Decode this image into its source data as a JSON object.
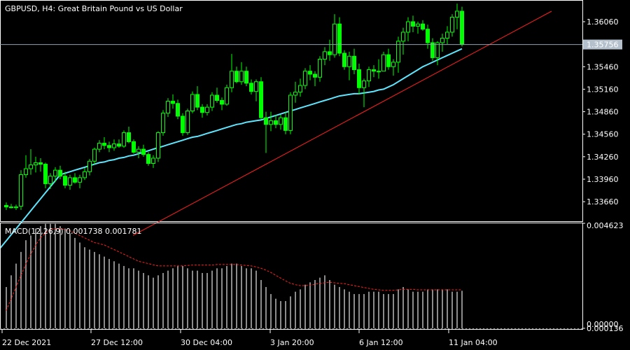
{
  "colors": {
    "background": "#000000",
    "border": "#ffffff",
    "text": "#ffffff",
    "bull": "#00ff00",
    "bear": "#000000",
    "ma": "#5ee6ff",
    "trend": "#ff2020",
    "price_line": "#8fa3b5",
    "price_box": "#b4c0cc",
    "macd_hist": "#c8c8c8",
    "signal": "#ff1f1f"
  },
  "chart_data": [
    {
      "type": "candlestick",
      "title": "GBPUSD, H4:  Great Britain Pound vs US Dollar",
      "ylim": [
        1.334,
        1.3634
      ],
      "yticks": [
        "1.36060",
        "1.35460",
        "1.35160",
        "1.34860",
        "1.34560",
        "1.34260",
        "1.33960",
        "1.33660"
      ],
      "current_price": "1.35756",
      "x_labels": [
        "22 Dec 2021",
        "27 Dec 12:00",
        "30 Dec 04:00",
        "3 Jan 20:00",
        "6 Jan 12:00",
        "11 Jan 04:00"
      ],
      "candles": [
        [
          1.3361,
          1.3365,
          1.3355,
          1.3359
        ],
        [
          1.3359,
          1.3363,
          1.3357,
          1.3358
        ],
        [
          1.3358,
          1.3362,
          1.3355,
          1.3359
        ],
        [
          1.336,
          1.3408,
          1.3355,
          1.3402
        ],
        [
          1.3402,
          1.3428,
          1.3398,
          1.341
        ],
        [
          1.341,
          1.3436,
          1.3402,
          1.3415
        ],
        [
          1.3415,
          1.3426,
          1.3405,
          1.3418
        ],
        [
          1.3418,
          1.3424,
          1.3406,
          1.3416
        ],
        [
          1.3416,
          1.3418,
          1.3384,
          1.339
        ],
        [
          1.339,
          1.3404,
          1.3383,
          1.34
        ],
        [
          1.34,
          1.3412,
          1.3392,
          1.3408
        ],
        [
          1.3408,
          1.3414,
          1.3396,
          1.34
        ],
        [
          1.34,
          1.3406,
          1.3384,
          1.3388
        ],
        [
          1.3388,
          1.3402,
          1.3382,
          1.3398
        ],
        [
          1.3398,
          1.3404,
          1.339,
          1.3392
        ],
        [
          1.3392,
          1.3402,
          1.3384,
          1.3398
        ],
        [
          1.3398,
          1.3411,
          1.3395,
          1.3406
        ],
        [
          1.3406,
          1.3423,
          1.3401,
          1.342
        ],
        [
          1.342,
          1.3438,
          1.3416,
          1.3436
        ],
        [
          1.3436,
          1.3448,
          1.3432,
          1.3444
        ],
        [
          1.3444,
          1.3452,
          1.3436,
          1.3441
        ],
        [
          1.3441,
          1.3446,
          1.3432,
          1.3438
        ],
        [
          1.3438,
          1.3449,
          1.3434,
          1.3443
        ],
        [
          1.3443,
          1.3449,
          1.3438,
          1.344
        ],
        [
          1.344,
          1.3461,
          1.3438,
          1.3458
        ],
        [
          1.3458,
          1.3466,
          1.3444,
          1.3446
        ],
        [
          1.3446,
          1.3449,
          1.343,
          1.3432
        ],
        [
          1.3432,
          1.344,
          1.3424,
          1.3436
        ],
        [
          1.3436,
          1.3442,
          1.3426,
          1.3429
        ],
        [
          1.3429,
          1.3432,
          1.3414,
          1.3417
        ],
        [
          1.3417,
          1.3428,
          1.3411,
          1.3424
        ],
        [
          1.3424,
          1.346,
          1.3419,
          1.3458
        ],
        [
          1.3458,
          1.3488,
          1.3454,
          1.3484
        ],
        [
          1.3484,
          1.3504,
          1.3479,
          1.35
        ],
        [
          1.35,
          1.3509,
          1.349,
          1.3497
        ],
        [
          1.3497,
          1.3502,
          1.3476,
          1.348
        ],
        [
          1.348,
          1.3484,
          1.3454,
          1.3458
        ],
        [
          1.3458,
          1.349,
          1.3455,
          1.3487
        ],
        [
          1.3487,
          1.3513,
          1.3484,
          1.3509
        ],
        [
          1.3509,
          1.352,
          1.3488,
          1.3492
        ],
        [
          1.3492,
          1.3496,
          1.3478,
          1.3485
        ],
        [
          1.3485,
          1.3496,
          1.3481,
          1.3492
        ],
        [
          1.3492,
          1.3512,
          1.3487,
          1.3508
        ],
        [
          1.3508,
          1.3518,
          1.3498,
          1.3501
        ],
        [
          1.3501,
          1.3505,
          1.3488,
          1.3496
        ],
        [
          1.3496,
          1.3522,
          1.3494,
          1.3518
        ],
        [
          1.3518,
          1.3563,
          1.3512,
          1.354
        ],
        [
          1.354,
          1.3546,
          1.3524,
          1.3526
        ],
        [
          1.3526,
          1.3552,
          1.3522,
          1.354
        ],
        [
          1.354,
          1.3546,
          1.352,
          1.3524
        ],
        [
          1.3524,
          1.3529,
          1.3509,
          1.3513
        ],
        [
          1.3513,
          1.3529,
          1.35,
          1.3526
        ],
        [
          1.3526,
          1.3532,
          1.3476,
          1.3478
        ],
        [
          1.3478,
          1.3486,
          1.3431,
          1.3469
        ],
        [
          1.3469,
          1.3486,
          1.346,
          1.3474
        ],
        [
          1.3474,
          1.3482,
          1.3464,
          1.3469
        ],
        [
          1.3469,
          1.3482,
          1.3462,
          1.3478
        ],
        [
          1.3478,
          1.3486,
          1.3456,
          1.3461
        ],
        [
          1.3461,
          1.3512,
          1.3456,
          1.3508
        ],
        [
          1.3508,
          1.3526,
          1.3498,
          1.3512
        ],
        [
          1.3512,
          1.353,
          1.3506,
          1.3521
        ],
        [
          1.3521,
          1.3544,
          1.3516,
          1.354
        ],
        [
          1.354,
          1.3548,
          1.3528,
          1.3536
        ],
        [
          1.3536,
          1.354,
          1.352,
          1.3532
        ],
        [
          1.3532,
          1.356,
          1.3526,
          1.3556
        ],
        [
          1.3556,
          1.3572,
          1.3548,
          1.3566
        ],
        [
          1.3566,
          1.3582,
          1.3554,
          1.3562
        ],
        [
          1.3562,
          1.3616,
          1.3558,
          1.3603
        ],
        [
          1.3603,
          1.3612,
          1.356,
          1.3564
        ],
        [
          1.3564,
          1.3568,
          1.3542,
          1.3546
        ],
        [
          1.3546,
          1.3566,
          1.3528,
          1.356
        ],
        [
          1.356,
          1.357,
          1.3536,
          1.3542
        ],
        [
          1.3542,
          1.355,
          1.3509,
          1.3518
        ],
        [
          1.3518,
          1.353,
          1.3492,
          1.3527
        ],
        [
          1.3527,
          1.3546,
          1.3519,
          1.3542
        ],
        [
          1.3542,
          1.3548,
          1.3532,
          1.354
        ],
        [
          1.354,
          1.3556,
          1.353,
          1.354
        ],
        [
          1.354,
          1.3566,
          1.354,
          1.3562
        ],
        [
          1.3562,
          1.357,
          1.3542,
          1.3546
        ],
        [
          1.3546,
          1.3556,
          1.3534,
          1.3552
        ],
        [
          1.3552,
          1.3586,
          1.3538,
          1.358
        ],
        [
          1.358,
          1.3598,
          1.3562,
          1.3592
        ],
        [
          1.3592,
          1.3612,
          1.358,
          1.3606
        ],
        [
          1.3606,
          1.3614,
          1.3592,
          1.36
        ],
        [
          1.36,
          1.3606,
          1.359,
          1.3603
        ],
        [
          1.3603,
          1.3608,
          1.3594,
          1.3596
        ],
        [
          1.3596,
          1.3602,
          1.357,
          1.3578
        ],
        [
          1.3578,
          1.3584,
          1.3554,
          1.3558
        ],
        [
          1.3558,
          1.358,
          1.3548,
          1.3578
        ],
        [
          1.3578,
          1.359,
          1.3566,
          1.3584
        ],
        [
          1.3584,
          1.36,
          1.3576,
          1.3592
        ],
        [
          1.3592,
          1.3616,
          1.3586,
          1.3612
        ],
        [
          1.3612,
          1.363,
          1.3596,
          1.362
        ],
        [
          1.362,
          1.3626,
          1.3573,
          1.3576
        ]
      ],
      "ma": [
        1.329,
        1.3298,
        1.3306,
        1.3314,
        1.3322,
        1.333,
        1.3338,
        1.3346,
        1.3354,
        1.3362,
        1.337,
        1.3378,
        1.3386,
        1.3394,
        1.3402,
        1.3404,
        1.3406,
        1.3408,
        1.341,
        1.3412,
        1.3414,
        1.3416,
        1.3418,
        1.3419,
        1.3421,
        1.3422,
        1.3424,
        1.3425,
        1.3427,
        1.3428,
        1.343,
        1.3432,
        1.3434,
        1.3436,
        1.3438,
        1.344,
        1.3442,
        1.3444,
        1.3446,
        1.3448,
        1.345,
        1.3452,
        1.3453,
        1.3455,
        1.3457,
        1.3459,
        1.3461,
        1.3463,
        1.3465,
        1.3467,
        1.3469,
        1.347,
        1.3472,
        1.3473,
        1.3474,
        1.3475,
        1.3477,
        1.3479,
        1.3481,
        1.3483,
        1.3485,
        1.3487,
        1.3489,
        1.3491,
        1.3493,
        1.3495,
        1.3497,
        1.3499,
        1.3501,
        1.3503,
        1.3505,
        1.3507,
        1.3508,
        1.3509,
        1.351,
        1.351,
        1.3511,
        1.3512,
        1.3513,
        1.3515,
        1.3516,
        1.3519,
        1.3522,
        1.3526,
        1.353,
        1.3534,
        1.3538,
        1.3542,
        1.3546,
        1.3549,
        1.3552,
        1.3555,
        1.3558,
        1.3561,
        1.3564,
        1.3567,
        1.357
      ],
      "trendline": [
        [
          1.3321,
          1.362
        ]
      ]
    },
    {
      "type": "histogram+line",
      "title": "MACD(12,26,9) 0.001738 0.001781",
      "ylim": [
        0.000136,
        0.004623
      ],
      "yticks": [
        "0.004623",
        "0.00000",
        "0.000136"
      ],
      "histogram": [
        0.0019,
        0.0024,
        0.0029,
        0.0034,
        0.0039,
        0.0041,
        0.0044,
        0.0045,
        0.0046,
        0.0046,
        0.0046,
        0.0045,
        0.0044,
        0.0042,
        0.004,
        0.0038,
        0.0036,
        0.0035,
        0.0034,
        0.0033,
        0.0032,
        0.0031,
        0.003,
        0.0029,
        0.0028,
        0.0027,
        0.0027,
        0.0026,
        0.0025,
        0.0024,
        0.0023,
        0.0024,
        0.0025,
        0.0026,
        0.0027,
        0.0028,
        0.0028,
        0.0027,
        0.0026,
        0.0026,
        0.0025,
        0.0025,
        0.0026,
        0.0027,
        0.0027,
        0.0028,
        0.0029,
        0.0029,
        0.0028,
        0.0027,
        0.0027,
        0.0026,
        0.0022,
        0.0019,
        0.0016,
        0.0014,
        0.0013,
        0.0013,
        0.0015,
        0.0017,
        0.0018,
        0.002,
        0.0021,
        0.0022,
        0.0023,
        0.0024,
        0.0022,
        0.002,
        0.0019,
        0.0018,
        0.0017,
        0.0016,
        0.0016,
        0.0016,
        0.0017,
        0.0017,
        0.0017,
        0.0016,
        0.0016,
        0.0016,
        0.0018,
        0.0019,
        0.0018,
        0.0017,
        0.0017,
        0.0017,
        0.0018,
        0.0018,
        0.0018,
        0.0018,
        0.0018,
        0.0017,
        0.0017,
        0.00174
      ],
      "signal": [
        0.0009,
        0.0014,
        0.0019,
        0.0024,
        0.0029,
        0.0033,
        0.0037,
        0.004,
        0.0042,
        0.00435,
        0.0044,
        0.0044,
        0.00435,
        0.0043,
        0.0042,
        0.0041,
        0.004,
        0.0039,
        0.0038,
        0.00375,
        0.0037,
        0.0036,
        0.0035,
        0.0034,
        0.0033,
        0.0032,
        0.0031,
        0.003,
        0.00295,
        0.0029,
        0.00285,
        0.0028,
        0.0028,
        0.0028,
        0.0028,
        0.0028,
        0.0028,
        0.00282,
        0.00284,
        0.00284,
        0.00284,
        0.00284,
        0.00284,
        0.00286,
        0.00286,
        0.00286,
        0.00286,
        0.00286,
        0.00284,
        0.00282,
        0.0028,
        0.00276,
        0.0027,
        0.00262,
        0.00252,
        0.0024,
        0.00228,
        0.00216,
        0.00206,
        0.002,
        0.00196,
        0.00196,
        0.00198,
        0.00202,
        0.00206,
        0.00208,
        0.0021,
        0.00208,
        0.00206,
        0.00204,
        0.002,
        0.00196,
        0.00192,
        0.00188,
        0.00184,
        0.0018,
        0.00178,
        0.00176,
        0.00176,
        0.00176,
        0.00178,
        0.0018,
        0.0018,
        0.0018,
        0.00178,
        0.00178,
        0.00178,
        0.00178,
        0.00178,
        0.00178,
        0.00178,
        0.00178,
        0.00178,
        0.00178
      ]
    }
  ]
}
